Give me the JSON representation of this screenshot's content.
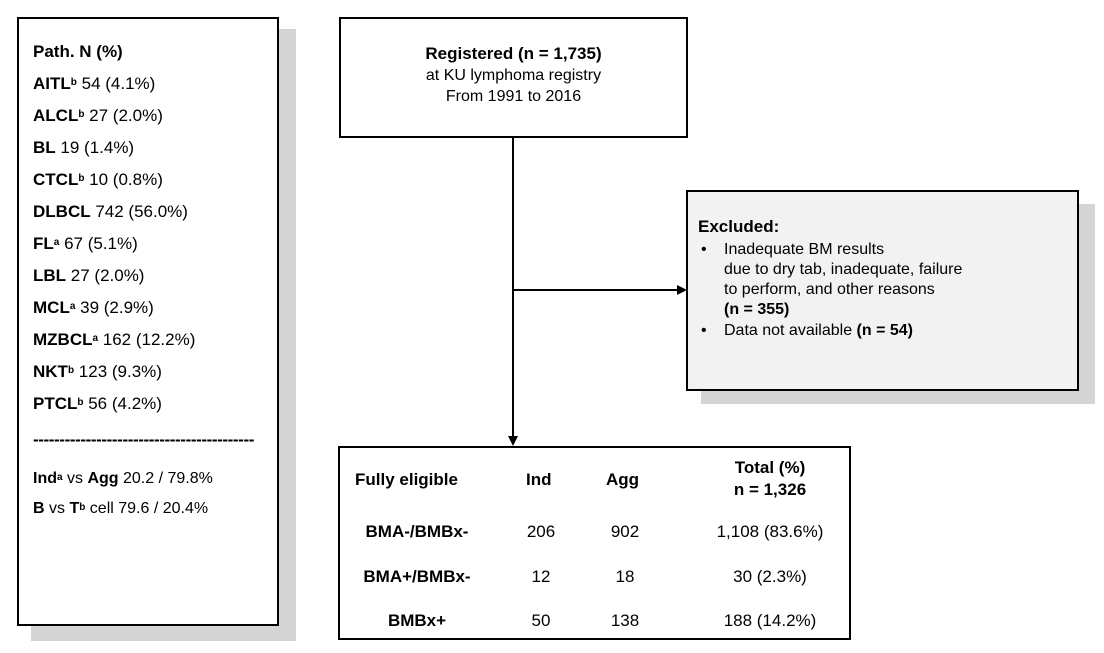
{
  "legend": {
    "title": "Path. N (%)",
    "rows": [
      {
        "abbr": "AITL",
        "sup": "b",
        "value": " 54 (4.1%)"
      },
      {
        "abbr": "ALCL",
        "sup": "b",
        "value": " 27 (2.0%)"
      },
      {
        "abbr": "BL",
        "sup": "",
        "value": " 19 (1.4%)"
      },
      {
        "abbr": "CTCL",
        "sup": "b",
        "value": " 10 (0.8%)"
      },
      {
        "abbr": "DLBCL",
        "sup": "",
        "value": " 742 (56.0%)"
      },
      {
        "abbr": "FL",
        "sup": "a",
        "value": " 67 (5.1%)"
      },
      {
        "abbr": "LBL",
        "sup": "",
        "value": " 27 (2.0%)"
      },
      {
        "abbr": "MCL",
        "sup": "a",
        "value": " 39 (2.9%)"
      },
      {
        "abbr": "MZBCL",
        "sup": "a",
        "value": " 162 (12.2%)"
      },
      {
        "abbr": "NKT",
        "sup": "b",
        "value": " 123 (9.3%)"
      },
      {
        "abbr": "PTCL",
        "sup": "b",
        "value": " 56 (4.2%)"
      }
    ],
    "separator": "------------------------------------------",
    "footer": [
      {
        "a": "Ind",
        "a_sup": "a",
        "mid": " vs ",
        "b": "Agg",
        "b_sup": "",
        "tail": " 20.2 / 79.8%"
      },
      {
        "a": "B",
        "a_sup": "",
        "mid": " vs ",
        "b": "T",
        "b_sup": "b",
        "tail": " cell 79.6 / 20.4%"
      }
    ]
  },
  "registered": {
    "title": "Registered (n = 1,735)",
    "line1": "at KU lymphoma registry",
    "line2": "From 1991 to 2016"
  },
  "excluded": {
    "title": "Excluded:",
    "bullet": "•",
    "item1_line1": "Inadequate BM results",
    "item1_line2": "due to dry tab, inadequate, failure",
    "item1_line3": "to perform, and other reasons",
    "item1_n": "(n = 355)",
    "item2_text": "Data not available ",
    "item2_n": "(n = 54)"
  },
  "eligible": {
    "headers": [
      "Fully eligible",
      "Ind",
      "Agg",
      "Total (%)"
    ],
    "total_n": "n = 1,326",
    "rows": [
      [
        "BMA-/BMBx-",
        "206",
        "902",
        "1,108 (83.6%)"
      ],
      [
        "BMA+/BMBx-",
        "12",
        "18",
        "30 (2.3%)"
      ],
      [
        "BMBx+",
        "50",
        "138",
        "188 (14.2%)"
      ]
    ]
  }
}
